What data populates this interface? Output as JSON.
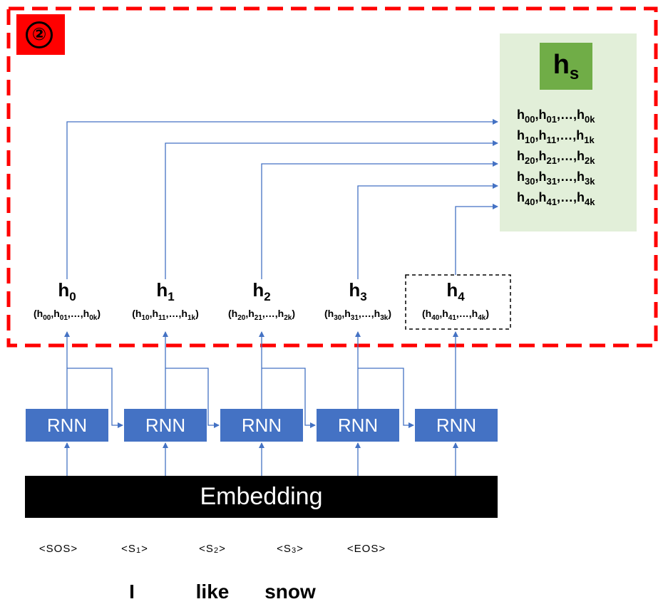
{
  "badge": "②",
  "hs": {
    "title": "h",
    "title_sub": "s",
    "rows": [
      [
        "00",
        "01",
        "0k"
      ],
      [
        "10",
        "11",
        "1k"
      ],
      [
        "20",
        "21",
        "2k"
      ],
      [
        "30",
        "31",
        "3k"
      ],
      [
        "40",
        "41",
        "4k"
      ]
    ]
  },
  "states": [
    {
      "main": "h",
      "idx": "0",
      "sub": [
        "00",
        "01",
        "0k"
      ]
    },
    {
      "main": "h",
      "idx": "1",
      "sub": [
        "10",
        "11",
        "1k"
      ]
    },
    {
      "main": "h",
      "idx": "2",
      "sub": [
        "20",
        "21",
        "2k"
      ]
    },
    {
      "main": "h",
      "idx": "3",
      "sub": [
        "30",
        "31",
        "3k"
      ]
    },
    {
      "main": "h",
      "idx": "4",
      "sub": [
        "40",
        "41",
        "4k"
      ]
    }
  ],
  "rnn_label": "RNN",
  "embedding_label": "Embedding",
  "tokens": [
    {
      "text": "<SOS>",
      "sub": ""
    },
    {
      "text": "<S",
      "sub": "1",
      "close": ">"
    },
    {
      "text": "<S",
      "sub": "2",
      "close": ">"
    },
    {
      "text": "<S",
      "sub": "3",
      "close": ">"
    },
    {
      "text": "<EOS>",
      "sub": ""
    }
  ],
  "words": [
    "I",
    "like",
    "snow"
  ],
  "colors": {
    "dashed_region": "#ff0000",
    "arrow": "#4472c4",
    "bracket": "#c00000",
    "hs_panel": "#e2efd9",
    "hs_title": "#70ad47",
    "rnn": "#4472c4"
  }
}
